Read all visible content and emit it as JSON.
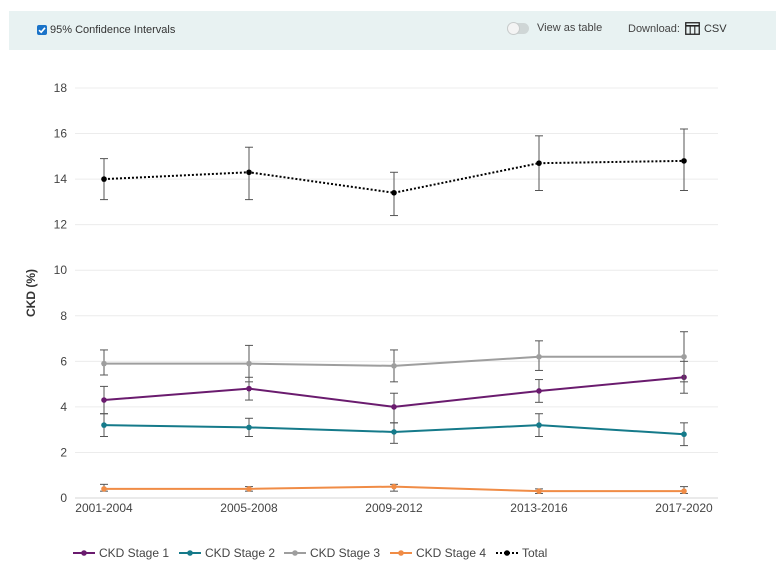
{
  "toolbar": {
    "ci_label": "95% Confidence Intervals",
    "ci_checked": true,
    "view_table_label": "View as table",
    "download_label": "Download:",
    "csv_label": "CSV"
  },
  "colors": {
    "toolbar_bg": "#e8f2f2",
    "checkbox": "#1a73c8",
    "stage1": "#6a1b6e",
    "stage2": "#157a8a",
    "stage3": "#9e9e9e",
    "stage4": "#f08c46",
    "total": "#000000"
  },
  "chart_data": {
    "type": "line",
    "ylabel": "CKD (%)",
    "xlabel": "",
    "ylim": [
      0,
      18
    ],
    "yticks": [
      0,
      2,
      4,
      6,
      8,
      10,
      12,
      14,
      16,
      18
    ],
    "grid": true,
    "legend_position": "bottom",
    "categories": [
      "2001-2004",
      "2005-2008",
      "2009-2012",
      "2013-2016",
      "2017-2020"
    ],
    "series": [
      {
        "name": "CKD Stage 1",
        "color": "#6a1b6e",
        "dash": "solid",
        "values": [
          4.3,
          4.8,
          4.0,
          4.7,
          5.3
        ],
        "lower": [
          3.7,
          4.3,
          3.3,
          4.2,
          4.6
        ],
        "upper": [
          4.9,
          5.3,
          4.6,
          5.2,
          6.0
        ]
      },
      {
        "name": "CKD Stage 2",
        "color": "#157a8a",
        "dash": "solid",
        "values": [
          3.2,
          3.1,
          2.9,
          3.2,
          2.8
        ],
        "lower": [
          2.7,
          2.7,
          2.4,
          2.7,
          2.3
        ],
        "upper": [
          3.7,
          3.5,
          3.3,
          3.7,
          3.3
        ]
      },
      {
        "name": "CKD Stage 3",
        "color": "#9e9e9e",
        "dash": "solid",
        "values": [
          5.9,
          5.9,
          5.8,
          6.2,
          6.2
        ],
        "lower": [
          5.4,
          5.1,
          5.1,
          5.6,
          5.1
        ],
        "upper": [
          6.5,
          6.7,
          6.5,
          6.9,
          7.3
        ]
      },
      {
        "name": "CKD Stage 4",
        "color": "#f08c46",
        "dash": "solid",
        "values": [
          0.4,
          0.4,
          0.5,
          0.3,
          0.3
        ],
        "lower": [
          0.3,
          0.3,
          0.3,
          0.2,
          0.2
        ],
        "upper": [
          0.6,
          0.5,
          0.6,
          0.4,
          0.5
        ]
      },
      {
        "name": "Total",
        "color": "#000000",
        "dash": "dotted",
        "values": [
          14.0,
          14.3,
          13.4,
          14.7,
          14.8
        ],
        "lower": [
          13.1,
          13.1,
          12.4,
          13.5,
          13.5
        ],
        "upper": [
          14.9,
          15.4,
          14.3,
          15.9,
          16.2
        ]
      }
    ]
  }
}
